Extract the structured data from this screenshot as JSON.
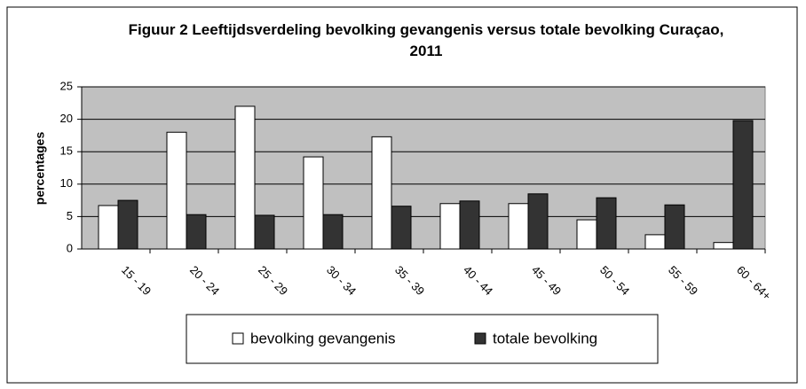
{
  "chart_data": {
    "type": "bar",
    "title": "Figuur 2  Leeftijdsverdeling bevolking gevangenis versus totale bevolking Curaçao, 2011",
    "y_label": "percentages",
    "categories": [
      "15 - 19",
      "20 - 24",
      "25 - 29",
      "30 - 34",
      "35 - 39",
      "40 - 44",
      "45 - 49",
      "50 - 54",
      "55 - 59",
      "60 - 64+"
    ],
    "series": [
      {
        "name": "bevolking gevangenis",
        "color": "#ffffff",
        "values": [
          6.7,
          18,
          22,
          14.2,
          17.3,
          7.0,
          7.0,
          4.5,
          2.2,
          1.0
        ]
      },
      {
        "name": "totale bevolking",
        "color": "#333333",
        "values": [
          7.5,
          5.3,
          5.2,
          5.3,
          6.6,
          7.4,
          8.5,
          7.9,
          6.8,
          19.8
        ]
      }
    ],
    "ylim": [
      0,
      25
    ],
    "yticks": [
      0,
      5,
      10,
      15,
      20,
      25
    ],
    "grid": true,
    "legend": "bottom"
  }
}
